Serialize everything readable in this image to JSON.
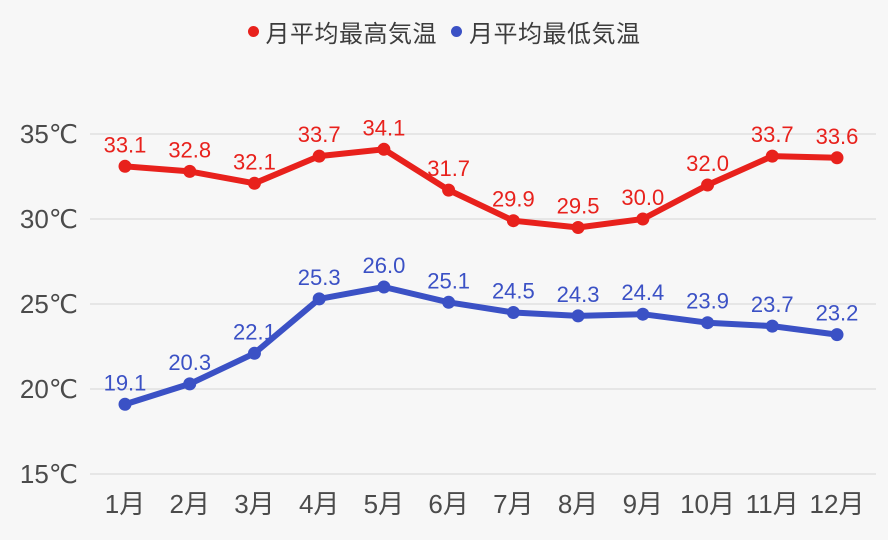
{
  "colors": {
    "background": "#f7f7f7",
    "grid": "#e0e0e0",
    "axis_text": "#4b4b4b",
    "legend_text": "#3c3c3c",
    "series_max": "#e8211c",
    "series_min": "#3b51c5"
  },
  "chart_data": {
    "type": "line",
    "categories": [
      "1月",
      "2月",
      "3月",
      "4月",
      "5月",
      "6月",
      "7月",
      "8月",
      "9月",
      "10月",
      "11月",
      "12月"
    ],
    "series": [
      {
        "name": "月平均最高気温",
        "color": "#e8211c",
        "values": [
          33.1,
          32.8,
          32.1,
          33.7,
          34.1,
          31.7,
          29.9,
          29.5,
          30.0,
          32.0,
          33.7,
          33.6
        ]
      },
      {
        "name": "月平均最低気温",
        "color": "#3b51c5",
        "values": [
          19.1,
          20.3,
          22.1,
          25.3,
          26.0,
          25.1,
          24.5,
          24.3,
          24.4,
          23.9,
          23.7,
          23.2
        ]
      }
    ],
    "yticks": [
      15,
      20,
      25,
      30,
      35
    ],
    "ytick_suffix": "℃",
    "ylim": [
      15,
      35
    ],
    "grid": true,
    "legend_position": "top",
    "data_labels": true,
    "title": "",
    "xlabel": "",
    "ylabel": ""
  }
}
